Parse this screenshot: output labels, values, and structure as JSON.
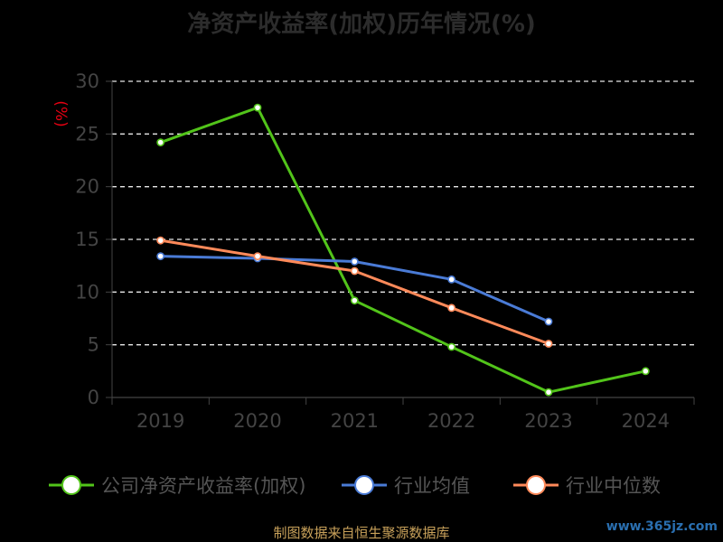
{
  "chart_data": {
    "type": "line",
    "title": "净资产收益率(加权)历年情况(%)",
    "ylabel": "(%)",
    "ylim": [
      0,
      30
    ],
    "yticks": [
      0,
      5,
      10,
      15,
      20,
      25,
      30
    ],
    "categories": [
      "2019",
      "2020",
      "2021",
      "2022",
      "2023",
      "2024"
    ],
    "grid": true,
    "legend_position": "bottom",
    "series": [
      {
        "name": "公司净资产收益率(加权)",
        "color": "#52c41a",
        "values": [
          24.2,
          27.5,
          9.2,
          4.8,
          0.5,
          2.5
        ]
      },
      {
        "name": "行业均值",
        "color": "#4a7bd6",
        "values": [
          13.4,
          13.2,
          12.9,
          11.2,
          7.2,
          null
        ]
      },
      {
        "name": "行业中位数",
        "color": "#ff8a5a",
        "values": [
          14.9,
          13.4,
          12.0,
          8.5,
          5.1,
          null
        ]
      }
    ]
  },
  "footer": "制图数据来自恒生聚源数据库",
  "watermark": "www.365jz.com"
}
